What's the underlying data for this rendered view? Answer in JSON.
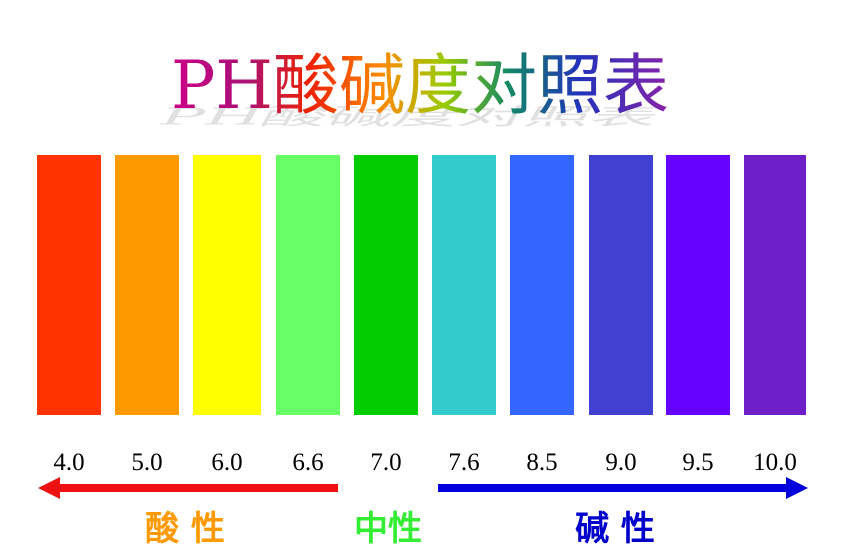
{
  "title": "PH酸碱度对照表",
  "swatches": [
    {
      "label": "4.0",
      "color": "#ff3300"
    },
    {
      "label": "5.0",
      "color": "#ff9900"
    },
    {
      "label": "6.0",
      "color": "#ffff00"
    },
    {
      "label": "6.6",
      "color": "#66ff66"
    },
    {
      "label": "7.0",
      "color": "#00cc00"
    },
    {
      "label": "7.6",
      "color": "#33cccc"
    },
    {
      "label": "8.5",
      "color": "#3366ff"
    },
    {
      "label": "9.0",
      "color": "#4141d1"
    },
    {
      "label": "9.5",
      "color": "#6600ff"
    },
    {
      "label": "10.0",
      "color": "#6e1fc8"
    }
  ],
  "acid": {
    "label": "酸 性",
    "color": "#ff9900"
  },
  "neutral": {
    "label": "中性",
    "color": "#33ee33"
  },
  "base": {
    "label": "碱 性",
    "color": "#0000cc"
  }
}
